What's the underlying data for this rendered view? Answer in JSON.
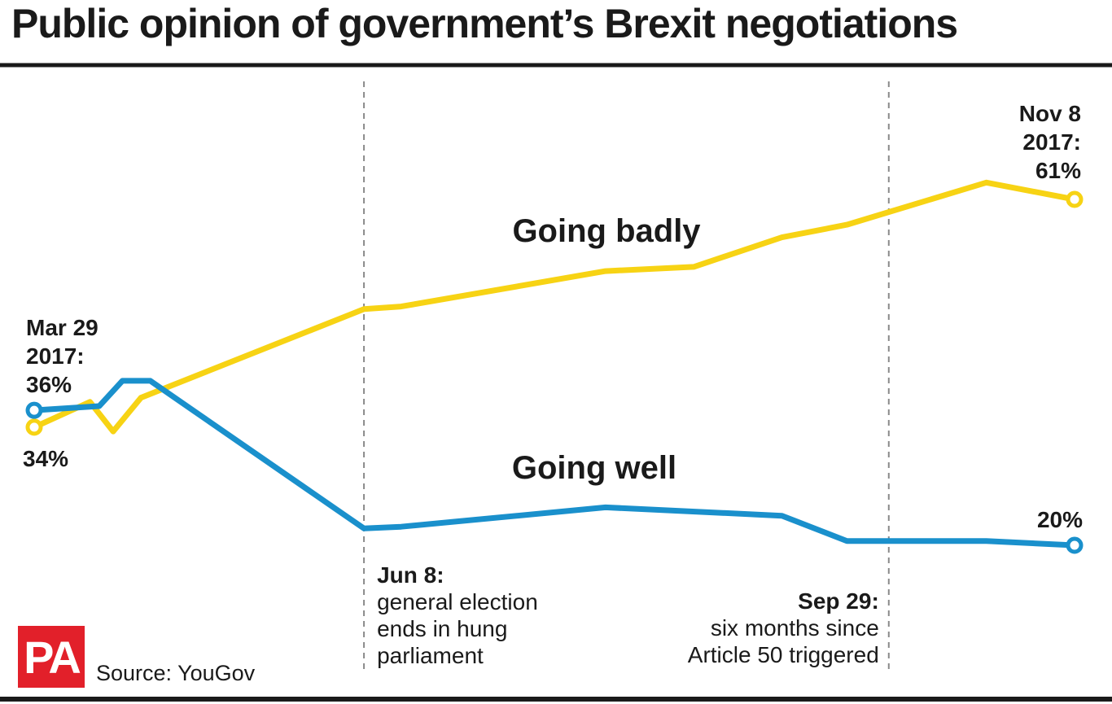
{
  "title": "Public opinion of government’s Brexit negotiations",
  "source": "Source: YouGov",
  "logo_text": "PA",
  "colors": {
    "badly": "#f7d314",
    "well": "#1a90cc",
    "text": "#1a1a1a",
    "rule": "#1a1a1a",
    "logo": "#e2202a"
  },
  "chart_data": {
    "type": "line",
    "x_unit": "date (2017)",
    "series": [
      {
        "name": "Going badly",
        "color": "#f7d314",
        "points": [
          [
            "2017-03-29",
            34
          ],
          [
            "2017-04-10",
            37
          ],
          [
            "2017-04-15",
            33.5
          ],
          [
            "2017-04-21",
            37.5
          ],
          [
            "2017-06-08",
            48
          ],
          [
            "2017-06-16",
            48.3
          ],
          [
            "2017-07-30",
            52.5
          ],
          [
            "2017-08-18",
            53
          ],
          [
            "2017-09-06",
            56.5
          ],
          [
            "2017-09-20",
            58
          ],
          [
            "2017-10-20",
            63
          ],
          [
            "2017-11-08",
            61
          ]
        ]
      },
      {
        "name": "Going well",
        "color": "#1a90cc",
        "points": [
          [
            "2017-03-29",
            36
          ],
          [
            "2017-04-12",
            36.5
          ],
          [
            "2017-04-17",
            39.5
          ],
          [
            "2017-04-23",
            39.5
          ],
          [
            "2017-06-08",
            22
          ],
          [
            "2017-06-16",
            22.2
          ],
          [
            "2017-07-30",
            24.5
          ],
          [
            "2017-09-06",
            23.5
          ],
          [
            "2017-09-20",
            20.5
          ],
          [
            "2017-10-20",
            20.5
          ],
          [
            "2017-11-08",
            20
          ]
        ]
      }
    ],
    "series_labels": [
      "Going badly",
      "Going well"
    ],
    "start_label": [
      "Mar 29",
      "2017:",
      "36%"
    ],
    "start_badly_label": "34%",
    "end_label": [
      "Nov 8",
      "2017:",
      "61%"
    ],
    "end_well_label": "20%",
    "events": [
      {
        "date": "2017-06-08",
        "title": "Jun 8:",
        "lines": [
          "general election",
          "ends in hung",
          "parliament"
        ],
        "align": "left"
      },
      {
        "date": "2017-09-29",
        "title": "Sep 29:",
        "lines": [
          "six months since",
          "Article 50 triggered"
        ],
        "align": "right"
      }
    ],
    "grid": false,
    "legend": "inline"
  }
}
